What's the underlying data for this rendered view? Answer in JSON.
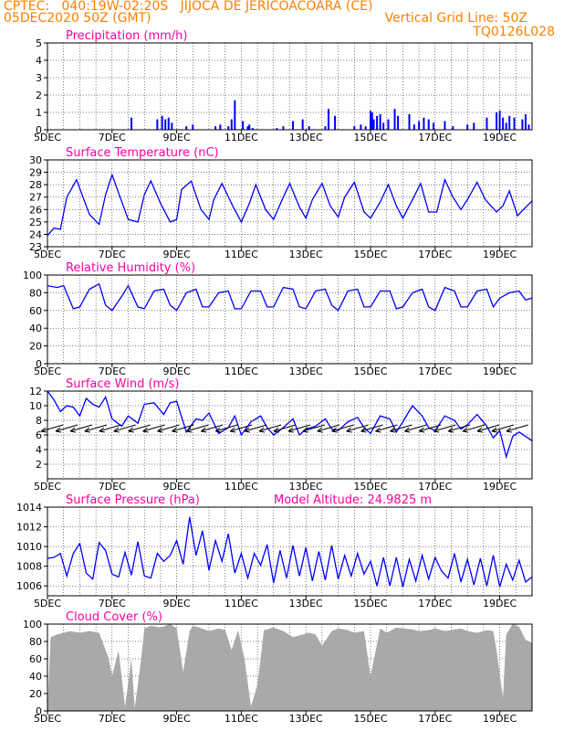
{
  "header": {
    "line1_left": "CPTEC:   040:19W-02:20S   JIJOCA DE JERICOACOARA (CE)",
    "line2_left": "05DEC2020 50Z (GMT)",
    "line2_right": "Vertical Grid Line: 50Z",
    "line3_right": "TQ0126L028"
  },
  "colors": {
    "header": "#ff7f00",
    "title": "#ff00a0",
    "series": "#0000ff",
    "cloud": "#a9a9a9"
  },
  "x_axis": {
    "tick_labels": [
      "5DEC",
      "7DEC",
      "9DEC",
      "11DEC",
      "13DEC",
      "15DEC",
      "17DEC",
      "19DEC"
    ],
    "range_days": [
      5,
      20
    ]
  },
  "chart_data": [
    {
      "type": "bar",
      "title": "Precipitation (mm/h)",
      "ylim": [
        0,
        5
      ],
      "yticks": [
        "0",
        "1",
        "2",
        "3",
        "4",
        "5"
      ],
      "x": [
        7.6,
        8.4,
        8.55,
        8.65,
        8.75,
        8.85,
        9.3,
        9.5,
        10.2,
        10.35,
        10.6,
        10.7,
        10.8,
        11.05,
        11.2,
        11.25,
        11.35,
        12.1,
        12.3,
        12.6,
        12.9,
        13.1,
        13.6,
        13.7,
        13.9,
        14.5,
        14.7,
        14.85,
        15.0,
        15.05,
        15.1,
        15.2,
        15.3,
        15.4,
        15.55,
        15.75,
        15.85,
        16.2,
        16.35,
        16.5,
        16.65,
        16.8,
        16.95,
        17.3,
        17.55,
        18.0,
        18.2,
        18.6,
        18.9,
        19.0,
        19.1,
        19.2,
        19.3,
        19.45,
        19.7,
        19.8,
        19.9
      ],
      "values": [
        0.7,
        0.6,
        0.8,
        0.6,
        0.7,
        0.4,
        0.2,
        0.3,
        0.2,
        0.3,
        0.2,
        0.6,
        1.7,
        0.5,
        0.2,
        0.3,
        0.1,
        0.1,
        0.2,
        0.5,
        0.6,
        0.2,
        0.2,
        1.2,
        0.8,
        0.2,
        0.3,
        0.2,
        1.1,
        1.0,
        0.6,
        0.8,
        0.9,
        0.4,
        0.6,
        1.2,
        0.8,
        0.9,
        0.3,
        0.5,
        0.7,
        0.6,
        0.4,
        0.5,
        0.2,
        0.3,
        0.4,
        0.7,
        1.0,
        1.1,
        0.7,
        0.4,
        0.8,
        0.7,
        0.6,
        0.9,
        0.3
      ]
    },
    {
      "type": "line",
      "title": "Surface Temperature (nC)",
      "ylim": [
        23,
        30
      ],
      "yticks": [
        "23",
        "24",
        "25",
        "26",
        "27",
        "28",
        "29",
        "30"
      ],
      "x": [
        5.0,
        5.2,
        5.4,
        5.6,
        5.9,
        6.1,
        6.3,
        6.6,
        6.8,
        7.0,
        7.25,
        7.5,
        7.8,
        8.0,
        8.2,
        8.5,
        8.8,
        9.0,
        9.15,
        9.45,
        9.75,
        10.0,
        10.15,
        10.4,
        10.75,
        11.0,
        11.25,
        11.45,
        11.75,
        12.0,
        12.3,
        12.5,
        12.8,
        13.0,
        13.2,
        13.5,
        13.75,
        14.0,
        14.2,
        14.5,
        14.8,
        15.0,
        15.3,
        15.55,
        15.8,
        16.0,
        16.3,
        16.55,
        16.8,
        17.05,
        17.3,
        17.55,
        17.8,
        18.0,
        18.3,
        18.55,
        18.9,
        19.1,
        19.3,
        19.55,
        19.7,
        20.0
      ],
      "values": [
        23.9,
        24.5,
        24.4,
        27.0,
        28.4,
        27.0,
        25.6,
        24.8,
        27.2,
        28.8,
        27.0,
        25.2,
        25.0,
        27.2,
        28.3,
        26.5,
        25.0,
        25.2,
        27.6,
        28.3,
        26.0,
        25.2,
        26.8,
        28.1,
        26.2,
        25.0,
        26.5,
        28.0,
        26.0,
        25.2,
        27.0,
        28.1,
        26.2,
        25.3,
        26.8,
        28.1,
        26.3,
        25.4,
        27.0,
        28.2,
        25.8,
        25.3,
        26.6,
        28.0,
        26.3,
        25.3,
        26.8,
        28.1,
        25.8,
        25.8,
        28.4,
        27.0,
        26.0,
        26.8,
        28.2,
        26.8,
        25.8,
        26.3,
        27.5,
        25.5,
        25.9,
        26.7
      ]
    },
    {
      "type": "line",
      "title": "Relative Humidity (%)",
      "ylim": [
        0,
        100
      ],
      "yticks": [
        "0",
        "20",
        "40",
        "60",
        "80",
        "100"
      ],
      "x": [
        5.0,
        5.3,
        5.5,
        5.8,
        6.0,
        6.3,
        6.6,
        6.8,
        7.0,
        7.3,
        7.5,
        7.8,
        8.0,
        8.3,
        8.6,
        8.8,
        9.0,
        9.3,
        9.6,
        9.8,
        10.0,
        10.3,
        10.6,
        10.8,
        11.0,
        11.3,
        11.6,
        11.8,
        12.0,
        12.3,
        12.6,
        12.8,
        13.0,
        13.3,
        13.6,
        13.8,
        14.0,
        14.3,
        14.6,
        14.8,
        15.0,
        15.3,
        15.6,
        15.8,
        16.0,
        16.3,
        16.6,
        16.8,
        17.0,
        17.3,
        17.6,
        17.8,
        18.0,
        18.3,
        18.6,
        18.8,
        19.0,
        19.3,
        19.6,
        19.8,
        20.0
      ],
      "values": [
        88,
        86,
        88,
        62,
        64,
        84,
        90,
        66,
        60,
        76,
        88,
        64,
        62,
        82,
        84,
        66,
        60,
        80,
        84,
        64,
        64,
        80,
        82,
        62,
        62,
        82,
        82,
        64,
        64,
        86,
        84,
        64,
        62,
        82,
        84,
        66,
        60,
        82,
        84,
        64,
        64,
        82,
        82,
        62,
        64,
        80,
        84,
        64,
        60,
        86,
        82,
        64,
        64,
        82,
        84,
        64,
        74,
        80,
        82,
        72,
        74
      ]
    },
    {
      "type": "line",
      "title": "Surface Wind (m/s)",
      "ylim": [
        0,
        12
      ],
      "yticks": [
        "2",
        "4",
        "6",
        "8",
        "10",
        "12"
      ],
      "x": [
        5.0,
        5.2,
        5.4,
        5.6,
        5.8,
        6.0,
        6.2,
        6.4,
        6.6,
        6.8,
        7.0,
        7.3,
        7.5,
        7.8,
        8.0,
        8.3,
        8.6,
        8.8,
        9.0,
        9.3,
        9.6,
        9.8,
        10.0,
        10.3,
        10.6,
        10.8,
        11.0,
        11.3,
        11.6,
        11.8,
        12.0,
        12.3,
        12.6,
        12.8,
        13.0,
        13.3,
        13.6,
        13.8,
        14.0,
        14.3,
        14.6,
        14.8,
        15.0,
        15.3,
        15.6,
        15.8,
        16.0,
        16.3,
        16.6,
        16.8,
        17.0,
        17.3,
        17.6,
        17.8,
        18.0,
        18.3,
        18.6,
        18.8,
        19.0,
        19.2,
        19.4,
        19.6,
        19.8,
        20.0
      ],
      "values": [
        12.0,
        10.8,
        9.2,
        10.0,
        9.8,
        8.6,
        11.0,
        10.2,
        9.8,
        11.2,
        8.2,
        7.2,
        8.6,
        7.6,
        10.2,
        10.4,
        8.8,
        10.4,
        10.6,
        6.4,
        8.2,
        8.0,
        9.0,
        6.2,
        7.0,
        8.6,
        6.0,
        7.8,
        8.6,
        7.0,
        6.0,
        7.0,
        8.2,
        6.0,
        6.8,
        7.2,
        8.2,
        6.8,
        6.6,
        7.8,
        8.4,
        7.0,
        6.2,
        8.6,
        8.2,
        6.4,
        7.8,
        10.0,
        8.6,
        7.0,
        6.6,
        8.6,
        8.0,
        6.8,
        7.4,
        8.8,
        7.2,
        5.6,
        6.6,
        3.0,
        5.8,
        6.4,
        5.8,
        5.2
      ]
    },
    {
      "type": "line",
      "title": "Surface Pressure (hPa)",
      "annotation": "Model Altitude: 24.9825 m",
      "ylim": [
        1005,
        1014
      ],
      "yticks": [
        "1006",
        "1008",
        "1010",
        "1012",
        "1014"
      ],
      "x": [
        5.0,
        5.2,
        5.4,
        5.6,
        5.8,
        6.0,
        6.2,
        6.4,
        6.6,
        6.8,
        7.0,
        7.2,
        7.4,
        7.6,
        7.8,
        8.0,
        8.2,
        8.4,
        8.6,
        8.8,
        9.0,
        9.2,
        9.4,
        9.6,
        9.8,
        10.0,
        10.2,
        10.4,
        10.6,
        10.8,
        11.0,
        11.2,
        11.4,
        11.6,
        11.8,
        12.0,
        12.2,
        12.4,
        12.6,
        12.8,
        13.0,
        13.2,
        13.4,
        13.6,
        13.8,
        14.0,
        14.2,
        14.4,
        14.6,
        14.8,
        15.0,
        15.2,
        15.4,
        15.6,
        15.8,
        16.0,
        16.2,
        16.4,
        16.6,
        16.8,
        17.0,
        17.2,
        17.4,
        17.6,
        17.8,
        18.0,
        18.2,
        18.4,
        18.6,
        18.8,
        19.0,
        19.2,
        19.4,
        19.6,
        19.8,
        20.0
      ],
      "values": [
        1008.8,
        1008.9,
        1009.3,
        1007.0,
        1009.3,
        1010.3,
        1007.3,
        1006.7,
        1010.4,
        1009.6,
        1007.2,
        1006.9,
        1009.4,
        1007.1,
        1010.5,
        1007.0,
        1006.8,
        1009.3,
        1008.5,
        1009.1,
        1010.6,
        1008.2,
        1013.0,
        1009.1,
        1011.6,
        1007.6,
        1010.6,
        1008.5,
        1011.3,
        1007.3,
        1009.3,
        1006.8,
        1009.3,
        1008.1,
        1010.2,
        1006.3,
        1009.6,
        1006.8,
        1010.1,
        1007.0,
        1009.9,
        1006.5,
        1009.5,
        1006.6,
        1010.1,
        1006.7,
        1009.1,
        1007.0,
        1009.3,
        1007.2,
        1008.5,
        1006.0,
        1008.9,
        1006.0,
        1008.9,
        1005.9,
        1008.7,
        1006.5,
        1009.1,
        1006.7,
        1008.9,
        1007.5,
        1006.8,
        1009.3,
        1006.4,
        1008.7,
        1006.1,
        1008.8,
        1006.0,
        1009.1,
        1005.9,
        1008.2,
        1006.6,
        1008.6,
        1006.4,
        1006.9
      ]
    },
    {
      "type": "area",
      "title": "Cloud Cover (%)",
      "ylim": [
        0,
        100
      ],
      "yticks": [
        "0",
        "20",
        "40",
        "60",
        "80",
        "100"
      ],
      "x": [
        5.0,
        5.1,
        5.3,
        5.5,
        5.7,
        6.0,
        6.3,
        6.6,
        6.9,
        7.0,
        7.2,
        7.4,
        7.6,
        7.7,
        7.9,
        8.0,
        8.2,
        8.5,
        8.8,
        9.0,
        9.2,
        9.4,
        9.5,
        9.7,
        10.0,
        10.3,
        10.5,
        10.7,
        10.9,
        11.1,
        11.3,
        11.5,
        11.7,
        12.0,
        12.3,
        12.6,
        12.9,
        13.1,
        13.3,
        13.5,
        13.8,
        14.0,
        14.3,
        14.5,
        14.8,
        15.0,
        15.3,
        15.5,
        15.8,
        16.0,
        16.3,
        16.5,
        16.8,
        17.0,
        17.3,
        17.5,
        17.8,
        18.0,
        18.3,
        18.6,
        18.8,
        18.9,
        19.1,
        19.2,
        19.4,
        19.6,
        19.8,
        20.0
      ],
      "values": [
        0,
        85,
        88,
        90,
        92,
        90,
        92,
        90,
        60,
        40,
        70,
        5,
        60,
        3,
        60,
        95,
        98,
        96,
        100,
        95,
        45,
        92,
        98,
        96,
        92,
        95,
        93,
        70,
        93,
        60,
        5,
        30,
        93,
        96,
        92,
        85,
        88,
        90,
        88,
        75,
        92,
        95,
        93,
        90,
        92,
        40,
        95,
        90,
        96,
        95,
        94,
        92,
        93,
        95,
        92,
        93,
        95,
        92,
        90,
        93,
        92,
        70,
        15,
        88,
        100,
        97,
        82,
        78
      ]
    }
  ]
}
